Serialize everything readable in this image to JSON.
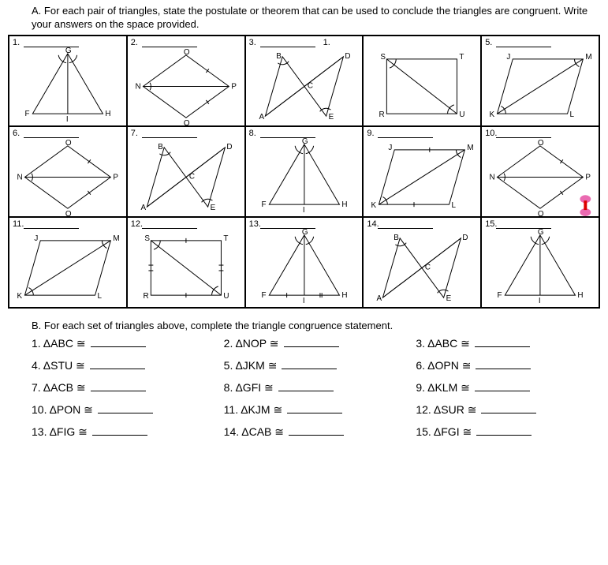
{
  "sectionA": {
    "letter": "A.",
    "text": "For each pair of triangles, state the postulate or theorem that can be used to conclude the triangles are congruent. Write your answers on the space provided."
  },
  "sectionB": {
    "letter": "B.",
    "text": "For each set of triangles above, complete the triangle congruence statement."
  },
  "cells": [
    {
      "n": "1.",
      "type": "iso-median",
      "labels": {
        "top": "G",
        "bl": "F",
        "bm": "I",
        "br": "H"
      }
    },
    {
      "n": "2.",
      "type": "diamond",
      "labels": {
        "top": "O",
        "right": "P",
        "bottom": "Q",
        "left": "N"
      }
    },
    {
      "n": "3.",
      "type": "bowtie",
      "labels": {
        "tl": "B",
        "tr": "D",
        "bl": "A",
        "br": "E",
        "c": "C"
      },
      "extra": "1."
    },
    {
      "n": "",
      "type": "rect-diag",
      "labels": {
        "tl": "S",
        "tr": "T",
        "bl": "R",
        "br": "U"
      }
    },
    {
      "n": "5.",
      "type": "para",
      "labels": {
        "tl": "J",
        "tr": "M",
        "bl": "K",
        "br": "L"
      }
    },
    {
      "n": "6.",
      "type": "diamond",
      "labels": {
        "top": "O",
        "right": "P",
        "bottom": "Q",
        "left": "N"
      }
    },
    {
      "n": "7.",
      "type": "bowtie",
      "labels": {
        "tl": "B",
        "tr": "D",
        "bl": "A",
        "br": "E",
        "c": "C"
      }
    },
    {
      "n": "8.",
      "type": "iso-median",
      "labels": {
        "top": "G",
        "bl": "F",
        "bm": "I",
        "br": "H"
      }
    },
    {
      "n": "9.",
      "type": "para",
      "labels": {
        "tl": "J",
        "tr": "M",
        "bl": "K",
        "br": "L"
      },
      "ticks": true
    },
    {
      "n": "10.",
      "type": "diamond",
      "labels": {
        "top": "O",
        "right": "P",
        "bottom": "Q",
        "left": "N"
      },
      "blob": true
    },
    {
      "n": "11.",
      "type": "para",
      "labels": {
        "tl": "J",
        "tr": "M",
        "bl": "K",
        "br": "L"
      }
    },
    {
      "n": "12.",
      "type": "rect-diag",
      "labels": {
        "tl": "S",
        "tr": "T",
        "bl": "R",
        "br": "U"
      },
      "ticks": true
    },
    {
      "n": "13.",
      "type": "iso-median",
      "labels": {
        "top": "G",
        "bl": "F",
        "bm": "I",
        "br": "H"
      },
      "ticks": true
    },
    {
      "n": "14.",
      "type": "bowtie",
      "labels": {
        "tl": "B",
        "tr": "D",
        "bl": "A",
        "br": "E",
        "c": "C"
      }
    },
    {
      "n": "15.",
      "type": "iso-median",
      "labels": {
        "top": "G",
        "bl": "F",
        "bm": "I",
        "br": "H"
      }
    }
  ],
  "statements": [
    {
      "n": "1.",
      "t": "ΔABC ≅"
    },
    {
      "n": "2.",
      "t": "ΔNOP ≅"
    },
    {
      "n": "3.",
      "t": "ΔABC ≅"
    },
    {
      "n": "4.",
      "t": "ΔSTU ≅"
    },
    {
      "n": "5.",
      "t": "ΔJKM ≅"
    },
    {
      "n": "6.",
      "t": "ΔOPN ≅"
    },
    {
      "n": "7.",
      "t": "ΔACB ≅"
    },
    {
      "n": "8.",
      "t": "ΔGFI ≅"
    },
    {
      "n": "9.",
      "t": "ΔKLM ≅"
    },
    {
      "n": "10.",
      "t": "ΔPON ≅"
    },
    {
      "n": "11.",
      "t": "ΔKJM ≅"
    },
    {
      "n": "12.",
      "t": "ΔSUR ≅"
    },
    {
      "n": "13.",
      "t": "ΔFIG ≅"
    },
    {
      "n": "14.",
      "t": "ΔCAB ≅"
    },
    {
      "n": "15.",
      "t": "ΔFGI ≅"
    }
  ],
  "colors": {
    "stroke": "#000000",
    "bg": "#ffffff",
    "pink": "#e85aa8"
  }
}
